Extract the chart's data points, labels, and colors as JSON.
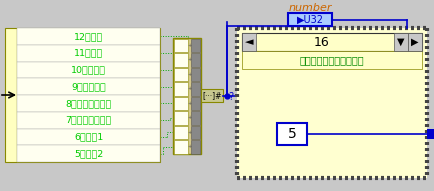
{
  "fig_w": 4.34,
  "fig_h": 1.91,
  "dpi": 100,
  "bg": "#c8c8c8",
  "labels": [
    "12：卧倒",
    "11：站立",
    "10：静步态",
    "9：对角步态",
    "8：转换奔跑步态",
    "7：跳跃奔跑步态",
    "6：备用1",
    "5：备用2"
  ],
  "label_color": "#00cc00",
  "list_bg": "#fffff0",
  "list_border": "#888800",
  "left_strip_bg": "#ffffc0",
  "array_bg": "#d4c88a",
  "array_cell_bg": "#fffff0",
  "array_cell_border": "#888800",
  "array_right_strip_bg": "#888888",
  "index_label": "[···]#",
  "index_bg": "#c8c890",
  "case_bg": "#ffffd0",
  "case_stipple": "#444444",
  "spinbox_bg": "#ffffc8",
  "spinbox_value": "16",
  "spinbox_border": "#333333",
  "case_label": "轮换奔跑步态＝＝任意腿",
  "case_label_color": "#008800",
  "number_label": "number",
  "number_color": "#cc6600",
  "u32_text": "▶U32",
  "u32_bg": "#aaccff",
  "u32_border": "#0000cc",
  "output_value": "5",
  "blue": "#0000cc",
  "green": "#00aa00",
  "white": "#ffffff",
  "black": "#000000"
}
